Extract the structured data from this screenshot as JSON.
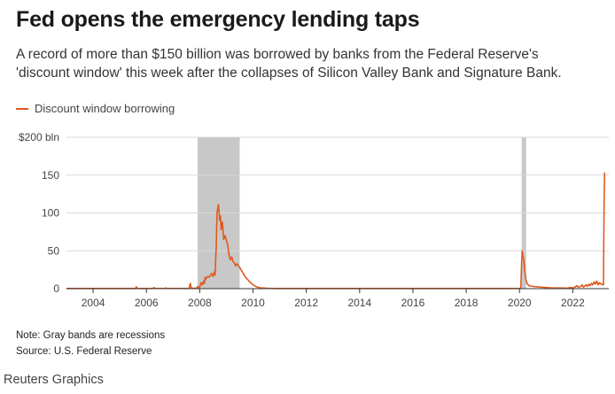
{
  "header": {
    "title": "Fed opens the emergency lending taps",
    "subtitle": "A record of more than $150 billion was borrowed by banks from the Federal Reserve's 'discount window' this week after the collapses of Silicon Valley Bank and Signature Bank."
  },
  "footer": {
    "note": "Note: Gray bands are recessions",
    "source": "Source: U.S. Federal Reserve",
    "credit": "Reuters Graphics"
  },
  "colors": {
    "series": "#e05a1e",
    "recession": "#c8c8c8",
    "grid": "#d9d9d9"
  },
  "chart_data": {
    "type": "line",
    "title": "Fed opens the emergency lending taps",
    "ylabel": "$ bln",
    "xlim": [
      2003.0,
      2023.35
    ],
    "ylim": [
      0,
      200
    ],
    "y_ticks": [
      {
        "value": 0,
        "label": "0"
      },
      {
        "value": 50,
        "label": "50"
      },
      {
        "value": 100,
        "label": "100"
      },
      {
        "value": 150,
        "label": "150"
      },
      {
        "value": 200,
        "label": "$200 bln"
      }
    ],
    "x_ticks": [
      {
        "value": 2004,
        "label": "2004"
      },
      {
        "value": 2006,
        "label": "2006"
      },
      {
        "value": 2008,
        "label": "2008"
      },
      {
        "value": 2010,
        "label": "2010"
      },
      {
        "value": 2012,
        "label": "2012"
      },
      {
        "value": 2014,
        "label": "2014"
      },
      {
        "value": 2016,
        "label": "2016"
      },
      {
        "value": 2018,
        "label": "2018"
      },
      {
        "value": 2020,
        "label": "2020"
      },
      {
        "value": 2022,
        "label": "2022"
      }
    ],
    "recessions": [
      {
        "start": 2007.92,
        "end": 2009.5
      },
      {
        "start": 2020.08,
        "end": 2020.25
      }
    ],
    "legend": [
      "Discount window borrowing"
    ],
    "series": [
      {
        "name": "Discount window borrowing",
        "x": [
          2003.0,
          2005.0,
          2005.6,
          2005.62,
          2005.65,
          2005.9,
          2006.25,
          2006.28,
          2006.32,
          2006.7,
          2006.72,
          2006.75,
          2007.3,
          2007.6,
          2007.65,
          2007.68,
          2007.7,
          2007.9,
          2007.92,
          2007.95,
          2008.0,
          2008.05,
          2008.1,
          2008.15,
          2008.18,
          2008.2,
          2008.22,
          2008.25,
          2008.3,
          2008.35,
          2008.4,
          2008.45,
          2008.5,
          2008.55,
          2008.58,
          2008.6,
          2008.62,
          2008.65,
          2008.7,
          2008.72,
          2008.75,
          2008.78,
          2008.8,
          2008.85,
          2008.9,
          2008.95,
          2009.0,
          2009.05,
          2009.1,
          2009.15,
          2009.2,
          2009.25,
          2009.3,
          2009.35,
          2009.4,
          2009.5,
          2009.6,
          2009.7,
          2009.8,
          2009.9,
          2010.0,
          2010.1,
          2010.2,
          2010.3,
          2010.4,
          2010.5,
          2010.7,
          2010.9,
          2011.0,
          2013.0,
          2016.0,
          2019.5,
          2020.05,
          2020.08,
          2020.1,
          2020.13,
          2020.16,
          2020.2,
          2020.25,
          2020.3,
          2020.35,
          2020.4,
          2020.5,
          2020.6,
          2020.8,
          2021.0,
          2021.2,
          2021.4,
          2021.6,
          2021.8,
          2021.9,
          2022.0,
          2022.1,
          2022.15,
          2022.2,
          2022.3,
          2022.35,
          2022.4,
          2022.5,
          2022.55,
          2022.6,
          2022.65,
          2022.7,
          2022.75,
          2022.8,
          2022.85,
          2022.9,
          2022.95,
          2023.0,
          2023.05,
          2023.1,
          2023.12,
          2023.15,
          2023.17,
          2023.19,
          2023.2
        ],
        "values": [
          0.2,
          0.2,
          0.2,
          2.5,
          0.3,
          0.2,
          0.3,
          1.5,
          0.3,
          0.3,
          1.0,
          0.3,
          0.3,
          0.3,
          7.0,
          1.0,
          0.5,
          0.5,
          3.0,
          1.0,
          2.0,
          8.0,
          5.0,
          10.0,
          7.0,
          15.0,
          12.0,
          14.0,
          16.0,
          15.0,
          18.0,
          20.0,
          16.0,
          22.0,
          18.0,
          40.0,
          55.0,
          100.0,
          111.0,
          104.0,
          90.0,
          96.0,
          78.0,
          88.0,
          65.0,
          70.0,
          64.0,
          58.0,
          44.0,
          38.0,
          42.0,
          36.0,
          34.0,
          30.0,
          33.0,
          28.0,
          22.0,
          16.0,
          12.0,
          8.0,
          5.0,
          3.0,
          1.5,
          1.0,
          0.8,
          0.5,
          0.3,
          0.2,
          0.2,
          0.2,
          0.2,
          0.2,
          0.3,
          36.0,
          50.0,
          43.0,
          38.0,
          22.0,
          10.0,
          6.0,
          4.0,
          3.5,
          3.0,
          2.5,
          2.0,
          1.5,
          1.0,
          1.0,
          0.8,
          0.7,
          1.5,
          0.8,
          2.5,
          4.0,
          2.0,
          3.0,
          5.0,
          2.0,
          5.0,
          3.0,
          6.0,
          4.0,
          7.0,
          5.0,
          9.0,
          6.0,
          10.0,
          5.0,
          8.0,
          6.0,
          6.0,
          5.0,
          5.0,
          100.0,
          153.0,
          153.0
        ]
      }
    ]
  }
}
